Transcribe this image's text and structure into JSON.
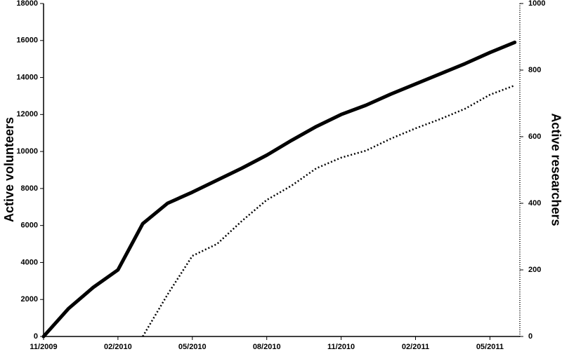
{
  "chart_data": {
    "type": "line",
    "categories": [
      "11/2009",
      null,
      null,
      "02/2010",
      null,
      null,
      "05/2010",
      null,
      null,
      "08/2010",
      null,
      null,
      "11/2010",
      null,
      null,
      "02/2011",
      null,
      null,
      "05/2011",
      null
    ],
    "y_label": "Active volunteers",
    "y2_label": "Active researchers",
    "series": [
      {
        "name": "Active volunteers",
        "color": "#000000",
        "line_style": "solid",
        "values": [
          0,
          1500,
          2650,
          3600,
          6100,
          7200,
          7800,
          8450,
          9100,
          9800,
          10600,
          11350,
          12000,
          12500,
          13100,
          13650,
          14200,
          14750,
          15350,
          15900
        ]
      },
      {
        "name": "Active researchers",
        "color": "#000000",
        "line_style": "dotted",
        "axis": "y2",
        "values": [
          null,
          null,
          null,
          null,
          0,
          126,
          242,
          278,
          347,
          410,
          453,
          505,
          537,
          558,
          594,
          625,
          653,
          684,
          726,
          754
        ]
      }
    ],
    "ylim": [
      0,
      18000
    ],
    "yticks": [
      0,
      2000,
      4000,
      6000,
      8000,
      10000,
      12000,
      14000,
      16000,
      18000
    ],
    "y2lim": [
      0,
      1000
    ],
    "y2ticks": [
      0,
      200,
      400,
      600,
      800,
      1000
    ],
    "grid": false
  }
}
